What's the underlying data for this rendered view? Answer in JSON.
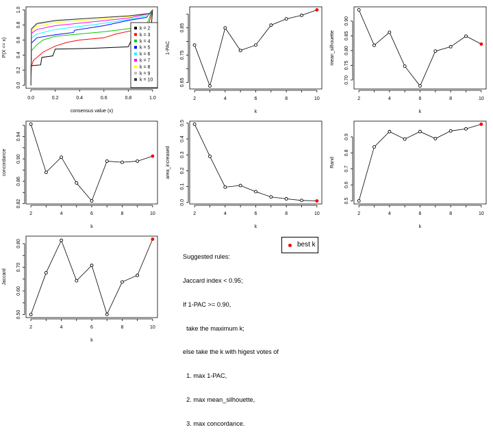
{
  "colors": {
    "best": "#ff0000",
    "line": "#000000"
  },
  "chart_data": [
    {
      "type": "line",
      "id": "ecdf",
      "xlabel": "consensus value (x)",
      "ylabel": "P(X <= x)",
      "xlim": [
        0,
        1
      ],
      "ylim": [
        0,
        1
      ],
      "xticks": [
        0,
        0.2,
        0.4,
        0.6,
        0.8,
        1.0
      ],
      "xticklabels": [
        "0.0",
        "0.2",
        "0.4",
        "0.6",
        "0.8",
        "1.0"
      ],
      "yticks": [
        0,
        0.2,
        0.4,
        0.6,
        0.8,
        1.0
      ],
      "yticklabels": [
        "0.0",
        "0.2",
        "0.4",
        "0.6",
        "0.8",
        "1.0"
      ],
      "legend_position": "bottom-right",
      "series": [
        {
          "name": "k = 2",
          "color": "#000000",
          "x": [
            0,
            0.001,
            0.08,
            0.09,
            0.18,
            0.2,
            0.5,
            0.8,
            0.82,
            0.98,
            1
          ],
          "y": [
            0,
            0.26,
            0.27,
            0.37,
            0.39,
            0.48,
            0.49,
            0.51,
            0.58,
            0.6,
            1
          ]
        },
        {
          "name": "k = 3",
          "color": "#ff0000",
          "x": [
            0,
            0.005,
            0.02,
            0.05,
            0.1,
            0.2,
            0.3,
            0.4,
            0.6,
            0.7,
            0.9,
            0.97,
            1
          ],
          "y": [
            0,
            0.25,
            0.33,
            0.37,
            0.44,
            0.52,
            0.57,
            0.6,
            0.63,
            0.68,
            0.75,
            0.82,
            1
          ]
        },
        {
          "name": "k = 4",
          "color": "#00cd00",
          "x": [
            0,
            0.005,
            0.05,
            0.1,
            0.2,
            0.4,
            0.6,
            0.8,
            0.95,
            1
          ],
          "y": [
            0,
            0.46,
            0.54,
            0.6,
            0.65,
            0.68,
            0.71,
            0.75,
            0.8,
            1
          ]
        },
        {
          "name": "k = 5",
          "color": "#0000ff",
          "x": [
            0,
            0.005,
            0.05,
            0.2,
            0.35,
            0.36,
            0.6,
            0.8,
            0.95,
            1
          ],
          "y": [
            0,
            0.56,
            0.63,
            0.67,
            0.7,
            0.73,
            0.79,
            0.86,
            0.9,
            1
          ]
        },
        {
          "name": "k = 6",
          "color": "#00ffff",
          "x": [
            0,
            0.005,
            0.05,
            0.2,
            0.5,
            0.8,
            0.97,
            1
          ],
          "y": [
            0,
            0.63,
            0.68,
            0.74,
            0.8,
            0.87,
            0.93,
            1
          ]
        },
        {
          "name": "k = 7",
          "color": "#ff00ff",
          "x": [
            0,
            0.005,
            0.05,
            0.2,
            0.5,
            0.8,
            0.97,
            1
          ],
          "y": [
            0,
            0.69,
            0.74,
            0.79,
            0.84,
            0.89,
            0.95,
            1
          ]
        },
        {
          "name": "k = 8",
          "color": "#ffff00",
          "x": [
            0,
            0.005,
            0.05,
            0.2,
            0.5,
            0.8,
            0.98,
            1
          ],
          "y": [
            0,
            0.72,
            0.78,
            0.83,
            0.87,
            0.91,
            0.96,
            1
          ]
        },
        {
          "name": "k = 9",
          "color": "#bebebe",
          "x": [
            0,
            0.005,
            0.05,
            0.2,
            0.5,
            0.8,
            0.98,
            1
          ],
          "y": [
            0,
            0.74,
            0.81,
            0.85,
            0.89,
            0.92,
            0.96,
            1
          ]
        },
        {
          "name": "k = 10",
          "color": "#333333",
          "x": [
            0,
            0.005,
            0.05,
            0.2,
            0.5,
            0.8,
            0.98,
            1
          ],
          "y": [
            0,
            0.75,
            0.82,
            0.86,
            0.89,
            0.92,
            0.95,
            1
          ]
        }
      ]
    },
    {
      "type": "line",
      "id": "pac",
      "xlabel": "k",
      "ylabel": "1-PAC",
      "x": [
        2,
        3,
        4,
        5,
        6,
        7,
        8,
        9,
        10
      ],
      "y": [
        0.787,
        0.637,
        0.85,
        0.767,
        0.787,
        0.86,
        0.883,
        0.896,
        0.916
      ],
      "best_k": 10,
      "yticks": [
        0.65,
        0.7,
        0.75,
        0.8,
        0.85,
        0.9
      ],
      "yticklabels": [
        "0.65",
        "",
        "0.75",
        "",
        "0.85",
        ""
      ]
    },
    {
      "type": "line",
      "id": "silhouette",
      "xlabel": "k",
      "ylabel": "mean_silhouette",
      "x": [
        2,
        3,
        4,
        5,
        6,
        7,
        8,
        9,
        10
      ],
      "y": [
        0.938,
        0.818,
        0.862,
        0.747,
        0.68,
        0.798,
        0.813,
        0.849,
        0.822
      ],
      "best_k": 10,
      "yticks": [
        0.7,
        0.75,
        0.8,
        0.85,
        0.9
      ],
      "yticklabels": [
        "0.70",
        "0.75",
        "0.80",
        "0.85",
        "0.90"
      ]
    },
    {
      "type": "line",
      "id": "concordance",
      "xlabel": "k",
      "ylabel": "concordance",
      "x": [
        2,
        3,
        4,
        5,
        6,
        7,
        8,
        9,
        10
      ],
      "y": [
        0.962,
        0.876,
        0.903,
        0.857,
        0.825,
        0.896,
        0.894,
        0.896,
        0.905
      ],
      "best_k": 10,
      "yticks": [
        0.82,
        0.84,
        0.86,
        0.88,
        0.9,
        0.92,
        0.94,
        0.96
      ],
      "yticklabels": [
        "0.82",
        "",
        "0.86",
        "",
        "0.90",
        "",
        "0.94",
        ""
      ]
    },
    {
      "type": "line",
      "id": "area",
      "xlabel": "k",
      "ylabel": "area_increased",
      "x": [
        2,
        3,
        4,
        5,
        6,
        7,
        8,
        9,
        10
      ],
      "y": [
        0.493,
        0.291,
        0.097,
        0.107,
        0.068,
        0.035,
        0.023,
        0.013,
        0.01
      ],
      "best_k": 10,
      "yticks": [
        0,
        0.1,
        0.2,
        0.3,
        0.4,
        0.5
      ],
      "yticklabels": [
        "0.0",
        "0.1",
        "0.2",
        "0.3",
        "0.4",
        "0.5"
      ]
    },
    {
      "type": "line",
      "id": "rand",
      "xlabel": "k",
      "ylabel": "Rand",
      "x": [
        2,
        3,
        4,
        5,
        6,
        7,
        8,
        9,
        10
      ],
      "y": [
        0.5,
        0.837,
        0.933,
        0.886,
        0.933,
        0.889,
        0.937,
        0.95,
        0.979
      ],
      "best_k": 10,
      "yticks": [
        0.5,
        0.6,
        0.7,
        0.8,
        0.9
      ],
      "yticklabels": [
        "0.5",
        "0.6",
        "0.7",
        "0.8",
        "0.9"
      ]
    },
    {
      "type": "line",
      "id": "jaccard",
      "xlabel": "k",
      "ylabel": "Jaccard",
      "x": [
        2,
        3,
        4,
        5,
        6,
        7,
        8,
        9,
        10
      ],
      "y": [
        0.5,
        0.677,
        0.814,
        0.643,
        0.708,
        0.501,
        0.638,
        0.666,
        0.819
      ],
      "best_k": 10,
      "yticks": [
        0.5,
        0.55,
        0.6,
        0.65,
        0.7,
        0.75,
        0.8
      ],
      "yticklabels": [
        "0.50",
        "",
        "0.60",
        "",
        "0.70",
        "",
        "0.80"
      ]
    }
  ],
  "k_axis": {
    "ticks": [
      2,
      3,
      4,
      5,
      6,
      7,
      8,
      9,
      10
    ],
    "ticklabels": [
      "2",
      "",
      "4",
      "",
      "6",
      "",
      "8",
      "",
      "10"
    ]
  },
  "rules": {
    "lines": [
      "Suggested rules:",
      "Jaccard index < 0.95;",
      "If 1-PAC >= 0.90,",
      "  take the maximum k;",
      "else take the k with higest votes of",
      "  1. max 1-PAC,",
      "  2. max mean_silhouette,",
      "  3. max concordance."
    ]
  },
  "legend": {
    "best_label": "best k"
  }
}
